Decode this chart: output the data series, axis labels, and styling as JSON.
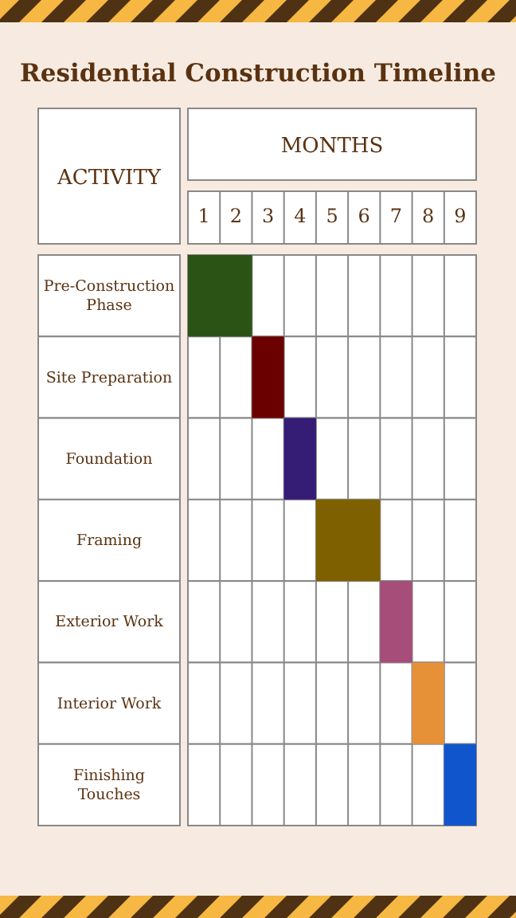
{
  "chart_data": {
    "type": "bar",
    "orientation": "horizontal",
    "title": "Residential Construction Timeline",
    "xlabel": "MONTHS",
    "ylabel": "ACTIVITY",
    "categories": [
      "Pre-Construction Phase",
      "Site Preparation",
      "Foundation",
      "Framing",
      "Exterior Work",
      "Interior Work",
      "Finishing Touches"
    ],
    "base": [
      0,
      2,
      3,
      4,
      6,
      7,
      8
    ],
    "values": [
      2,
      1,
      1,
      2,
      1,
      1,
      1
    ],
    "colors": [
      "#2b5316",
      "#6b0000",
      "#351c75",
      "#7f6000",
      "#a64d79",
      "#e69138",
      "#1155cc"
    ],
    "xlim": [
      0,
      9
    ],
    "xticks": [
      {
        "value": 0.5,
        "label": "1"
      },
      {
        "value": 1.5,
        "label": "2"
      },
      {
        "value": 2.5,
        "label": "3"
      },
      {
        "value": 3.5,
        "label": "4"
      },
      {
        "value": 4.5,
        "label": "5"
      },
      {
        "value": 5.5,
        "label": "6"
      },
      {
        "value": 6.5,
        "label": "7"
      },
      {
        "value": 7.5,
        "label": "8"
      },
      {
        "value": 8.5,
        "label": "9"
      }
    ],
    "grid": true
  }
}
